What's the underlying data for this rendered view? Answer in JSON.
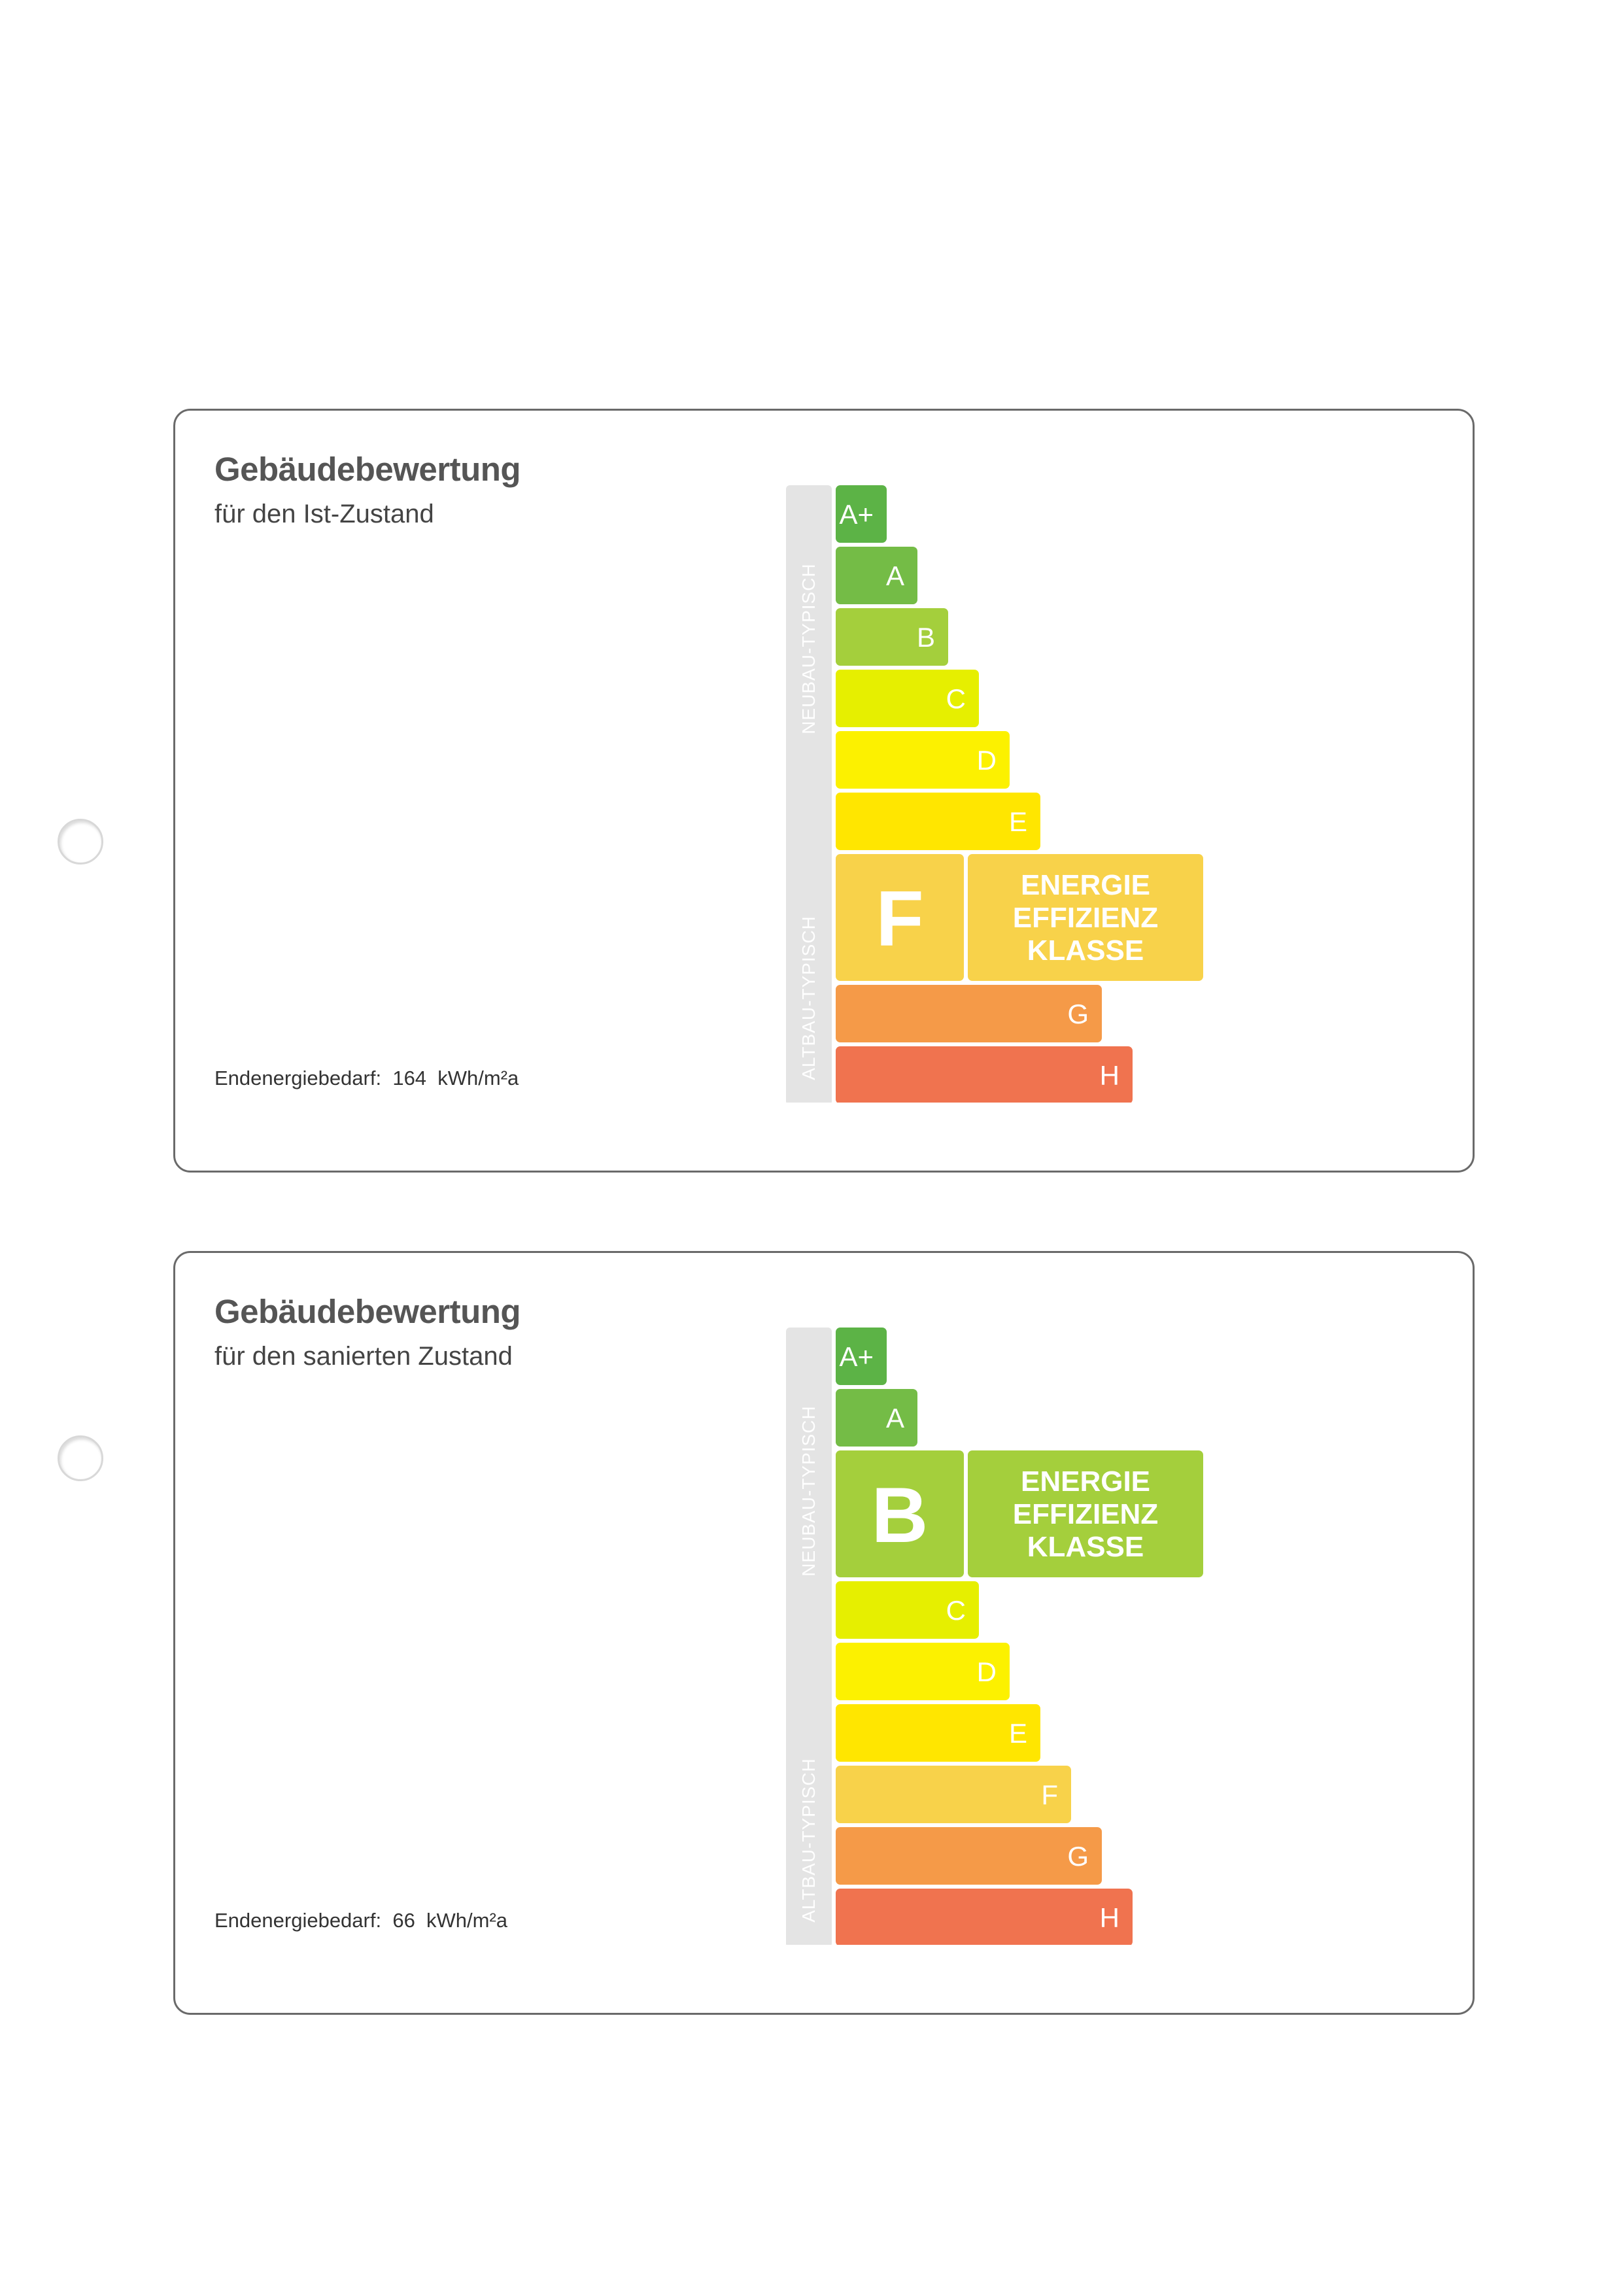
{
  "cards": [
    {
      "title": "Gebäudebewertung",
      "subtitle": "für den Ist-Zustand",
      "demand_label": "Endenergiebedarf:",
      "demand_value": "164",
      "demand_unit": "kWh/m²a",
      "side_labels": {
        "neubau": "NEUBAU-TYPISCH",
        "altbau": "ALTBAU-TYPISCH"
      },
      "classes": [
        "A+",
        "A",
        "B",
        "C",
        "D",
        "E",
        "F",
        "G",
        "H"
      ],
      "selected_class": "F",
      "badge_lines": [
        "ENERGIE",
        "EFFIZIENZ",
        "KLASSE"
      ]
    },
    {
      "title": "Gebäudebewertung",
      "subtitle": "für den sanierten Zustand",
      "demand_label": "Endenergiebedarf:",
      "demand_value": "66",
      "demand_unit": "kWh/m²a",
      "side_labels": {
        "neubau": "NEUBAU-TYPISCH",
        "altbau": "ALTBAU-TYPISCH"
      },
      "classes": [
        "A+",
        "A",
        "B",
        "C",
        "D",
        "E",
        "F",
        "G",
        "H"
      ],
      "selected_class": "B",
      "badge_lines": [
        "ENERGIE",
        "EFFIZIENZ",
        "KLASSE"
      ]
    }
  ],
  "class_colors": {
    "A+": "#5cb346",
    "A": "#74bc46",
    "B": "#a4cf3c",
    "C": "#e6ef00",
    "D": "#fcf100",
    "E": "#ffe600",
    "F": "#f8d24a",
    "G": "#f59a48",
    "H": "#f0734f"
  }
}
